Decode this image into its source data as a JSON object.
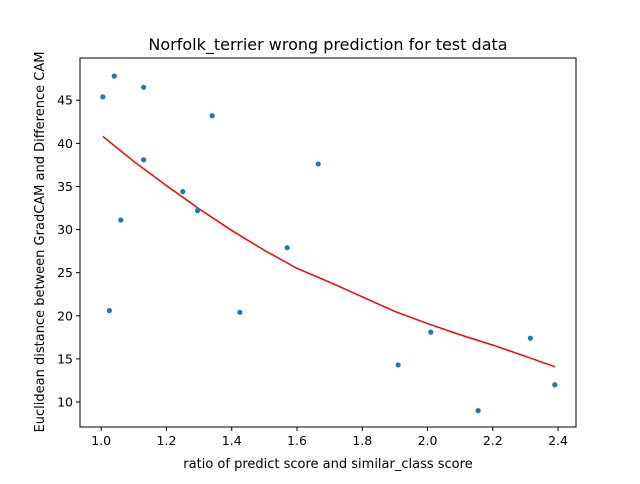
{
  "chart_data": {
    "type": "scatter",
    "title": "Norfolk_terrier wrong prediction for test data",
    "xlabel": "ratio of predict score and similar_class score",
    "ylabel": "Euclidean distance between GradCAM and Difference CAM",
    "xlim": [
      0.935,
      2.455
    ],
    "ylim": [
      7.1,
      49.9
    ],
    "xticks": [
      1.0,
      1.2,
      1.4,
      1.6,
      1.8,
      2.0,
      2.2,
      2.4
    ],
    "xtick_labels": [
      "1.0",
      "1.2",
      "1.4",
      "1.6",
      "1.8",
      "2.0",
      "2.2",
      "2.4"
    ],
    "yticks": [
      10,
      15,
      20,
      25,
      30,
      35,
      40,
      45
    ],
    "ytick_labels": [
      "10",
      "15",
      "20",
      "25",
      "30",
      "35",
      "40",
      "45"
    ],
    "grid": false,
    "points": {
      "color": "#1f77b4",
      "x": [
        1.005,
        1.04,
        1.13,
        1.025,
        1.06,
        1.13,
        1.25,
        1.295,
        1.34,
        1.425,
        1.57,
        1.665,
        1.91,
        2.01,
        2.155,
        2.315,
        2.39
      ],
      "y": [
        45.4,
        47.8,
        46.5,
        20.6,
        31.1,
        38.1,
        34.4,
        32.2,
        43.2,
        20.4,
        27.9,
        37.6,
        14.3,
        18.1,
        9.0,
        17.4,
        12.0
      ]
    },
    "fit_line": {
      "color": "#ff0000",
      "x": [
        1.005,
        1.1,
        1.2,
        1.3,
        1.4,
        1.5,
        1.6,
        1.7,
        1.8,
        1.9,
        2.0,
        2.1,
        2.2,
        2.3,
        2.39
      ],
      "y": [
        40.8,
        37.9,
        35.1,
        32.4,
        29.9,
        27.6,
        25.5,
        23.9,
        22.2,
        20.5,
        19.1,
        17.8,
        16.6,
        15.3,
        14.1
      ]
    }
  }
}
